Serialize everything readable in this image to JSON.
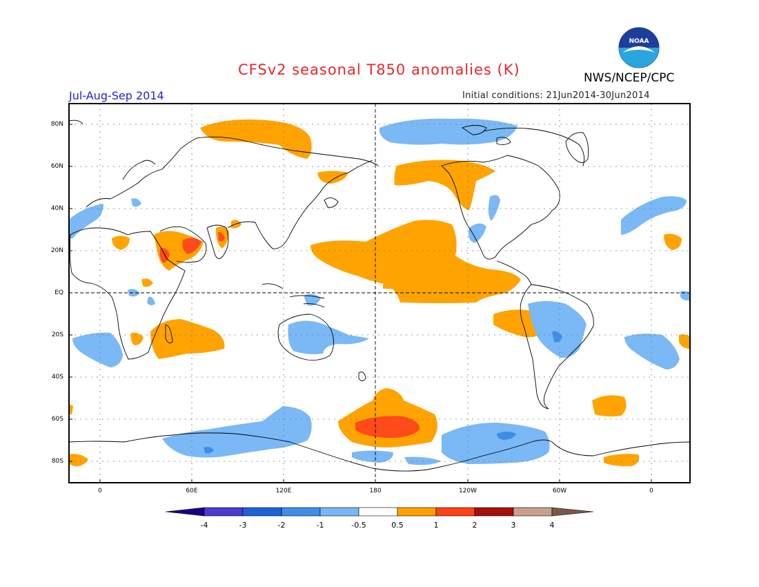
{
  "title": "CFSv2 seasonal T850 anomalies (K)",
  "agency": "NWS/NCEP/CPC",
  "logo_text": "NOAA",
  "period": "Jul-Aug-Sep 2014",
  "initial_conditions": "Initial conditions: 21Jun2014-30Jun2014",
  "lat_labels": [
    "80N",
    "60N",
    "40N",
    "20N",
    "EQ",
    "20S",
    "40S",
    "60S",
    "80S"
  ],
  "lon_labels": [
    "0",
    "60E",
    "120E",
    "180",
    "120W",
    "60W",
    "0"
  ],
  "colorbar": {
    "labels": [
      "-4",
      "-3",
      "-2",
      "-1",
      "-0.5",
      "0.5",
      "1",
      "2",
      "3",
      "4"
    ],
    "colors": [
      "#1b0082",
      "#4b3bd3",
      "#1e63d6",
      "#3c8ee8",
      "#78b6f5",
      "#ffffff",
      "#ffa000",
      "#ff4216",
      "#a80e0e",
      "#c8a090",
      "#7a5848"
    ]
  },
  "colors": {
    "warm_0_5": "#ffa300",
    "warm_1": "#ff4a1a",
    "warm_2": "#cc2200",
    "cool_0_5": "#7ab8f6",
    "cool_1": "#3f8ee6",
    "title": "#e8262a",
    "period": "#2222dd"
  }
}
